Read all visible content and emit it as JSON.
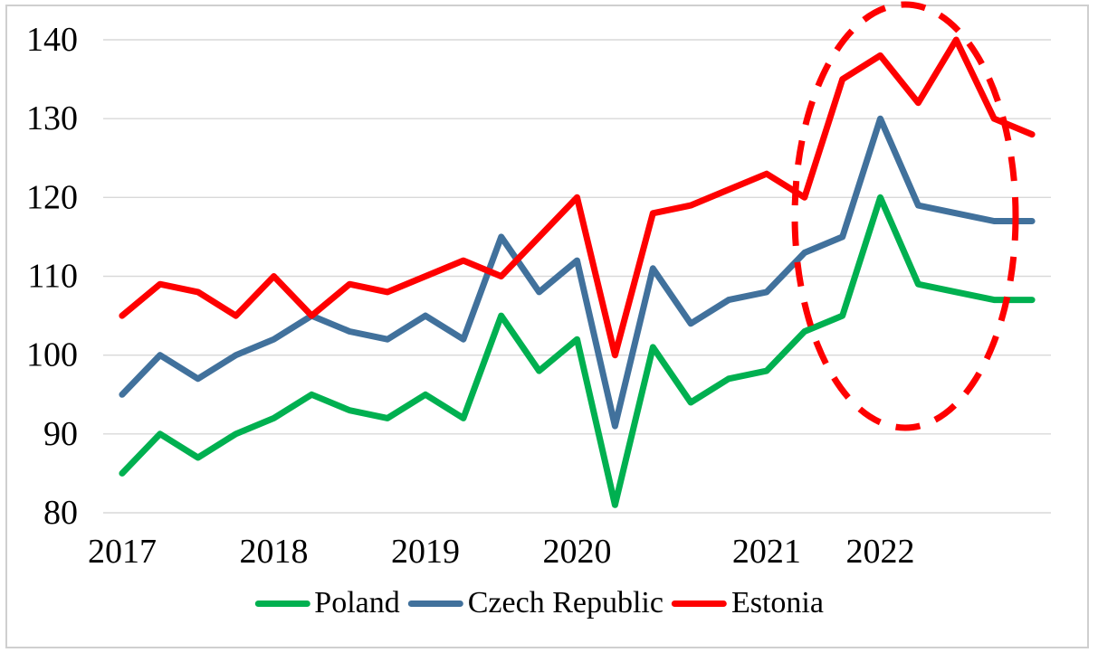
{
  "chart_data": {
    "type": "line",
    "title": "",
    "xlabel": "",
    "ylabel": "",
    "y_axis": {
      "min": 80,
      "max": 140,
      "step": 10,
      "tick_labels": [
        "80",
        "90",
        "100",
        "110",
        "120",
        "130",
        "140"
      ]
    },
    "x_axis": {
      "tick_labels_shown": [
        "2017",
        "2018",
        "2019",
        "2020",
        "2021",
        "2022"
      ]
    },
    "categories": [
      "2017",
      "",
      "",
      "",
      "2018",
      "",
      "",
      "",
      "2019",
      "",
      "",
      "",
      "2020",
      "",
      "",
      "",
      "",
      "2021",
      "",
      "",
      "2022",
      "",
      "",
      "",
      ""
    ],
    "series": [
      {
        "name": "Poland",
        "color": "#00B050",
        "values": [
          85,
          90,
          87,
          90,
          92,
          95,
          93,
          92,
          95,
          92,
          105,
          98,
          102,
          81,
          101,
          94,
          97,
          98,
          103,
          105,
          120,
          109,
          108,
          107,
          107
        ]
      },
      {
        "name": "Czech Republic",
        "color": "#41719C",
        "values": [
          95,
          100,
          97,
          100,
          102,
          105,
          103,
          102,
          105,
          102,
          115,
          108,
          112,
          91,
          111,
          104,
          107,
          108,
          113,
          115,
          130,
          119,
          118,
          117,
          117
        ]
      },
      {
        "name": "Estonia",
        "color": "#FE0000",
        "values": [
          105,
          109,
          108,
          105,
          110,
          105,
          109,
          108,
          110,
          112,
          110,
          115,
          120,
          100,
          118,
          119,
          121,
          123,
          120,
          135,
          138,
          132,
          140,
          130,
          128
        ]
      }
    ],
    "legend": {
      "position": "bottom",
      "entries": [
        "Poland",
        "Czech Republic",
        "Estonia"
      ]
    },
    "grid": {
      "horizontal": true,
      "vertical": false,
      "color": "#D9D9D9"
    },
    "annotations": [
      {
        "type": "dashed-ellipse",
        "color": "#FE0000",
        "note": "highlight around 2022 peak values"
      }
    ]
  }
}
